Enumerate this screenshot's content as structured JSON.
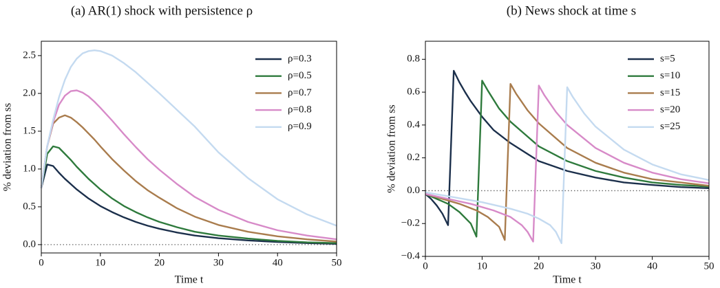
{
  "chart_data": [
    {
      "type": "line",
      "title": "(a) AR(1) shock with persistence ρ",
      "xlabel": "Time t",
      "ylabel": "% deviation from ss",
      "xlim": [
        0,
        50
      ],
      "ylim": [
        -0.11,
        2.69
      ],
      "xticks": [
        0,
        10,
        20,
        30,
        40,
        50
      ],
      "yticks": [
        {
          "value": 0,
          "label": "0.0"
        },
        0.5,
        {
          "value": 1,
          "label": "1.0"
        },
        1.5,
        {
          "value": 2,
          "label": "2.0"
        },
        2.5
      ],
      "hline": 0,
      "legend": "upper right",
      "series": [
        {
          "name": "ρ=0.3",
          "color": "#1b2f4b",
          "x": [
            0,
            1,
            2,
            3,
            4,
            5,
            6,
            7,
            8,
            9,
            10,
            12,
            14,
            16,
            18,
            20,
            23,
            26,
            30,
            35,
            40,
            45,
            50
          ],
          "values": [
            0.75,
            1.06,
            1.04,
            0.95,
            0.87,
            0.8,
            0.73,
            0.67,
            0.61,
            0.56,
            0.51,
            0.43,
            0.36,
            0.3,
            0.25,
            0.21,
            0.16,
            0.12,
            0.085,
            0.055,
            0.035,
            0.02,
            0.01
          ]
        },
        {
          "name": "ρ=0.5",
          "color": "#2e7a3c",
          "x": [
            0,
            1,
            2,
            3,
            4,
            5,
            6,
            7,
            8,
            9,
            10,
            12,
            14,
            16,
            18,
            20,
            23,
            26,
            30,
            35,
            40,
            45,
            50
          ],
          "values": [
            0.75,
            1.2,
            1.3,
            1.28,
            1.2,
            1.12,
            1.03,
            0.95,
            0.87,
            0.8,
            0.73,
            0.61,
            0.51,
            0.43,
            0.36,
            0.3,
            0.23,
            0.17,
            0.12,
            0.08,
            0.05,
            0.03,
            0.02
          ]
        },
        {
          "name": "ρ=0.7",
          "color": "#a97c4d",
          "x": [
            0,
            1,
            2,
            3,
            4,
            5,
            6,
            7,
            8,
            9,
            10,
            12,
            14,
            16,
            18,
            20,
            23,
            26,
            30,
            35,
            40,
            45,
            50
          ],
          "values": [
            0.75,
            1.3,
            1.6,
            1.68,
            1.71,
            1.68,
            1.62,
            1.55,
            1.47,
            1.39,
            1.3,
            1.13,
            0.98,
            0.84,
            0.72,
            0.62,
            0.48,
            0.37,
            0.26,
            0.17,
            0.11,
            0.07,
            0.04
          ]
        },
        {
          "name": "ρ=0.8",
          "color": "#d78ac8",
          "x": [
            0,
            1,
            2,
            3,
            4,
            5,
            6,
            7,
            8,
            9,
            10,
            12,
            14,
            16,
            18,
            20,
            23,
            26,
            30,
            35,
            40,
            45,
            50
          ],
          "values": [
            0.75,
            1.3,
            1.62,
            1.85,
            1.97,
            2.03,
            2.04,
            2.01,
            1.96,
            1.89,
            1.81,
            1.64,
            1.46,
            1.29,
            1.13,
            0.99,
            0.8,
            0.63,
            0.46,
            0.3,
            0.19,
            0.12,
            0.07
          ]
        },
        {
          "name": "ρ=0.9",
          "color": "#c4daf0",
          "x": [
            0,
            1,
            2,
            3,
            4,
            5,
            6,
            7,
            8,
            9,
            10,
            12,
            14,
            16,
            18,
            20,
            23,
            26,
            30,
            35,
            40,
            45,
            50
          ],
          "values": [
            0.75,
            1.3,
            1.65,
            1.95,
            2.18,
            2.35,
            2.46,
            2.53,
            2.56,
            2.57,
            2.56,
            2.5,
            2.4,
            2.28,
            2.14,
            2.0,
            1.78,
            1.56,
            1.22,
            0.88,
            0.6,
            0.4,
            0.25
          ]
        }
      ]
    },
    {
      "type": "line",
      "title": "(b) News shock at time s",
      "xlabel": "Time t",
      "ylabel": "% deviation from ss",
      "xlim": [
        0,
        50
      ],
      "ylim": [
        -0.4,
        0.91
      ],
      "xticks": [
        0,
        10,
        20,
        30,
        40,
        50
      ],
      "yticks": [
        {
          "value": -0.4,
          "label": "−0.4"
        },
        {
          "value": -0.2,
          "label": "−0.2"
        },
        {
          "value": 0,
          "label": "0.0"
        },
        0.2,
        0.4,
        0.6,
        0.8
      ],
      "hline": 0,
      "legend": "upper right",
      "series": [
        {
          "name": "s=5",
          "color": "#1b2f4b",
          "x": [
            0,
            1,
            2,
            3,
            4,
            5,
            6,
            7,
            8,
            10,
            12,
            15,
            20,
            25,
            30,
            35,
            40,
            45,
            50
          ],
          "values": [
            -0.02,
            -0.05,
            -0.09,
            -0.14,
            -0.21,
            0.73,
            0.66,
            0.6,
            0.545,
            0.45,
            0.37,
            0.29,
            0.18,
            0.12,
            0.08,
            0.05,
            0.035,
            0.022,
            0.015
          ]
        },
        {
          "name": "s=10",
          "color": "#2e7a3c",
          "x": [
            0,
            2,
            4,
            6,
            8,
            9,
            10,
            11,
            13,
            15,
            20,
            25,
            30,
            35,
            40,
            45,
            50
          ],
          "values": [
            -0.02,
            -0.05,
            -0.08,
            -0.13,
            -0.2,
            -0.28,
            0.67,
            0.61,
            0.5,
            0.42,
            0.27,
            0.18,
            0.12,
            0.08,
            0.05,
            0.035,
            0.025
          ]
        },
        {
          "name": "s=15",
          "color": "#a97c4d",
          "x": [
            0,
            3,
            6,
            9,
            11,
            13,
            14,
            15,
            16,
            18,
            20,
            25,
            30,
            35,
            40,
            45,
            50
          ],
          "values": [
            -0.02,
            -0.05,
            -0.08,
            -0.12,
            -0.16,
            -0.22,
            -0.3,
            0.65,
            0.59,
            0.49,
            0.41,
            0.26,
            0.17,
            0.11,
            0.07,
            0.05,
            0.03
          ]
        },
        {
          "name": "s=20",
          "color": "#d78ac8",
          "x": [
            0,
            4,
            8,
            12,
            15,
            17,
            18,
            19,
            20,
            21,
            23,
            25,
            30,
            35,
            40,
            45,
            50
          ],
          "values": [
            -0.02,
            -0.05,
            -0.08,
            -0.12,
            -0.16,
            -0.21,
            -0.25,
            -0.31,
            0.64,
            0.58,
            0.48,
            0.4,
            0.26,
            0.17,
            0.11,
            0.07,
            0.045
          ]
        },
        {
          "name": "s=25",
          "color": "#c4daf0",
          "x": [
            0,
            5,
            10,
            15,
            18,
            20,
            22,
            23,
            24,
            25,
            26,
            28,
            30,
            35,
            40,
            45,
            50
          ],
          "values": [
            -0.01,
            -0.04,
            -0.07,
            -0.11,
            -0.14,
            -0.17,
            -0.21,
            -0.25,
            -0.32,
            0.63,
            0.57,
            0.47,
            0.39,
            0.25,
            0.16,
            0.1,
            0.065
          ]
        }
      ]
    }
  ]
}
